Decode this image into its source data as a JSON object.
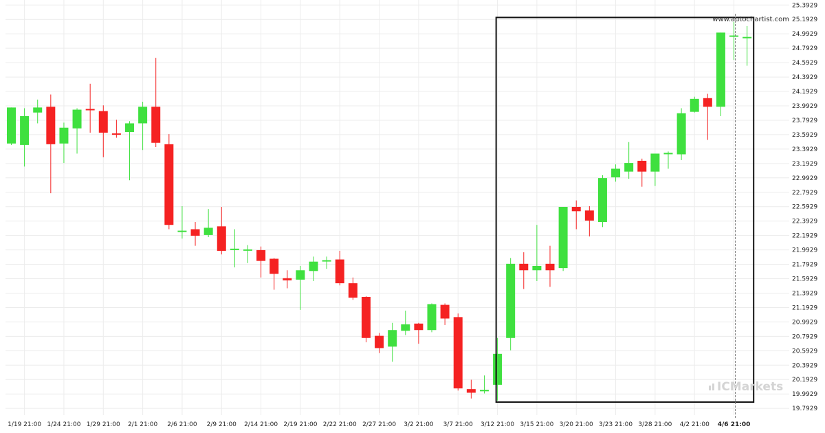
{
  "chart_data": {
    "type": "candlestick",
    "watermark": "www.autochartist.com",
    "brand": "ICMarkets",
    "colors": {
      "up": "#3fe03f",
      "down": "#f52222",
      "grid": "#ececec",
      "frame": "#111111",
      "axis_text": "#222222"
    },
    "y_range": [
      19.7,
      25.45
    ],
    "y_ticks": [
      "25.3929",
      "25.1929",
      "24.9929",
      "24.7929",
      "24.5929",
      "24.3929",
      "24.1929",
      "23.9929",
      "23.7929",
      "23.5929",
      "23.3929",
      "23.1929",
      "22.9929",
      "22.7929",
      "22.5929",
      "22.3929",
      "22.1929",
      "21.9929",
      "21.7929",
      "21.5929",
      "21.3929",
      "21.1929",
      "20.9929",
      "20.7929",
      "20.5929",
      "20.3929",
      "20.1929",
      "19.9929",
      "19.7929"
    ],
    "x_ticks": [
      {
        "label": "1/19 21:00",
        "index": 1
      },
      {
        "label": "1/24 21:00",
        "index": 4
      },
      {
        "label": "1/29 21:00",
        "index": 7
      },
      {
        "label": "2/1 21:00",
        "index": 10
      },
      {
        "label": "2/6 21:00",
        "index": 13
      },
      {
        "label": "2/9 21:00",
        "index": 16
      },
      {
        "label": "2/14 21:00",
        "index": 19
      },
      {
        "label": "2/19 21:00",
        "index": 22
      },
      {
        "label": "2/22 21:00",
        "index": 25
      },
      {
        "label": "2/27 21:00",
        "index": 28
      },
      {
        "label": "3/2 21:00",
        "index": 31
      },
      {
        "label": "3/7 21:00",
        "index": 34
      },
      {
        "label": "3/12 21:00",
        "index": 37
      },
      {
        "label": "3/15 21:00",
        "index": 40
      },
      {
        "label": "3/20 21:00",
        "index": 43
      },
      {
        "label": "3/23 21:00",
        "index": 46
      },
      {
        "label": "3/28 21:00",
        "index": 49
      },
      {
        "label": "4/2 21:00",
        "index": 52
      },
      {
        "label": "4/6 21:00",
        "index": 55
      }
    ],
    "pattern_box": {
      "start_index": 36.9,
      "end_index": 56.5,
      "top": 25.22,
      "bottom": 19.88
    },
    "current_marker_index": 55.1,
    "candles": [
      {
        "o": 23.47,
        "h": 23.97,
        "l": 23.45,
        "c": 23.97
      },
      {
        "o": 23.45,
        "h": 23.96,
        "l": 23.15,
        "c": 23.85
      },
      {
        "o": 23.9,
        "h": 24.08,
        "l": 23.75,
        "c": 23.97
      },
      {
        "o": 23.98,
        "h": 24.15,
        "l": 22.78,
        "c": 23.46
      },
      {
        "o": 23.47,
        "h": 23.76,
        "l": 23.2,
        "c": 23.69
      },
      {
        "o": 23.68,
        "h": 23.96,
        "l": 23.33,
        "c": 23.94
      },
      {
        "o": 23.95,
        "h": 24.3,
        "l": 23.62,
        "c": 23.94
      },
      {
        "o": 23.92,
        "h": 24.0,
        "l": 23.28,
        "c": 23.62
      },
      {
        "o": 23.61,
        "h": 23.8,
        "l": 23.55,
        "c": 23.6
      },
      {
        "o": 23.63,
        "h": 23.78,
        "l": 22.96,
        "c": 23.75
      },
      {
        "o": 23.75,
        "h": 24.05,
        "l": 23.38,
        "c": 23.98
      },
      {
        "o": 23.98,
        "h": 24.66,
        "l": 23.42,
        "c": 23.48
      },
      {
        "o": 23.46,
        "h": 23.6,
        "l": 22.28,
        "c": 22.34
      },
      {
        "o": 22.25,
        "h": 22.6,
        "l": 22.15,
        "c": 22.26
      },
      {
        "o": 22.28,
        "h": 22.38,
        "l": 22.05,
        "c": 22.19
      },
      {
        "o": 22.2,
        "h": 22.56,
        "l": 22.17,
        "c": 22.3
      },
      {
        "o": 22.32,
        "h": 22.59,
        "l": 21.93,
        "c": 21.98
      },
      {
        "o": 21.99,
        "h": 22.28,
        "l": 21.75,
        "c": 22.01
      },
      {
        "o": 22.0,
        "h": 22.06,
        "l": 21.81,
        "c": 22.0
      },
      {
        "o": 21.99,
        "h": 22.04,
        "l": 21.61,
        "c": 21.84
      },
      {
        "o": 21.87,
        "h": 21.88,
        "l": 21.44,
        "c": 21.66
      },
      {
        "o": 21.6,
        "h": 21.71,
        "l": 21.46,
        "c": 21.57
      },
      {
        "o": 21.58,
        "h": 21.77,
        "l": 21.16,
        "c": 21.71
      },
      {
        "o": 21.7,
        "h": 21.9,
        "l": 21.56,
        "c": 21.83
      },
      {
        "o": 21.85,
        "h": 21.9,
        "l": 21.73,
        "c": 21.85
      },
      {
        "o": 21.86,
        "h": 21.98,
        "l": 21.5,
        "c": 21.53
      },
      {
        "o": 21.53,
        "h": 21.61,
        "l": 21.3,
        "c": 21.33
      },
      {
        "o": 21.34,
        "h": 21.35,
        "l": 20.71,
        "c": 20.77
      },
      {
        "o": 20.8,
        "h": 20.84,
        "l": 20.56,
        "c": 20.63
      },
      {
        "o": 20.65,
        "h": 20.98,
        "l": 20.44,
        "c": 20.88
      },
      {
        "o": 20.87,
        "h": 21.15,
        "l": 20.81,
        "c": 20.96
      },
      {
        "o": 20.97,
        "h": 20.98,
        "l": 20.69,
        "c": 20.88
      },
      {
        "o": 20.88,
        "h": 21.25,
        "l": 20.85,
        "c": 21.24
      },
      {
        "o": 21.23,
        "h": 21.25,
        "l": 20.95,
        "c": 21.04
      },
      {
        "o": 21.06,
        "h": 21.11,
        "l": 20.04,
        "c": 20.07
      },
      {
        "o": 20.06,
        "h": 20.19,
        "l": 19.93,
        "c": 20.01
      },
      {
        "o": 20.03,
        "h": 20.25,
        "l": 20.0,
        "c": 20.05
      },
      {
        "o": 20.12,
        "h": 20.77,
        "l": 19.9,
        "c": 20.55
      },
      {
        "o": 20.77,
        "h": 21.88,
        "l": 20.6,
        "c": 21.8
      },
      {
        "o": 21.8,
        "h": 21.96,
        "l": 21.45,
        "c": 21.71
      },
      {
        "o": 21.71,
        "h": 22.34,
        "l": 21.56,
        "c": 21.77
      },
      {
        "o": 21.8,
        "h": 22.05,
        "l": 21.48,
        "c": 21.71
      },
      {
        "o": 21.74,
        "h": 22.59,
        "l": 21.7,
        "c": 22.59
      },
      {
        "o": 22.59,
        "h": 22.68,
        "l": 22.28,
        "c": 22.53
      },
      {
        "o": 22.54,
        "h": 22.6,
        "l": 22.18,
        "c": 22.4
      },
      {
        "o": 22.38,
        "h": 23.03,
        "l": 22.31,
        "c": 22.99
      },
      {
        "o": 23.0,
        "h": 23.18,
        "l": 22.94,
        "c": 23.12
      },
      {
        "o": 23.08,
        "h": 23.49,
        "l": 22.98,
        "c": 23.2
      },
      {
        "o": 23.23,
        "h": 23.26,
        "l": 22.87,
        "c": 23.08
      },
      {
        "o": 23.08,
        "h": 23.3,
        "l": 22.88,
        "c": 23.33
      },
      {
        "o": 23.34,
        "h": 23.36,
        "l": 23.12,
        "c": 23.34
      },
      {
        "o": 23.32,
        "h": 23.96,
        "l": 23.24,
        "c": 23.89
      },
      {
        "o": 23.91,
        "h": 24.12,
        "l": 23.9,
        "c": 24.09
      },
      {
        "o": 24.1,
        "h": 24.16,
        "l": 23.52,
        "c": 23.98
      },
      {
        "o": 23.98,
        "h": 25.01,
        "l": 23.85,
        "c": 25.01
      },
      {
        "o": 24.97,
        "h": 25.16,
        "l": 24.63,
        "c": 24.97
      },
      {
        "o": 24.95,
        "h": 25.1,
        "l": 24.55,
        "c": 24.95
      }
    ]
  }
}
